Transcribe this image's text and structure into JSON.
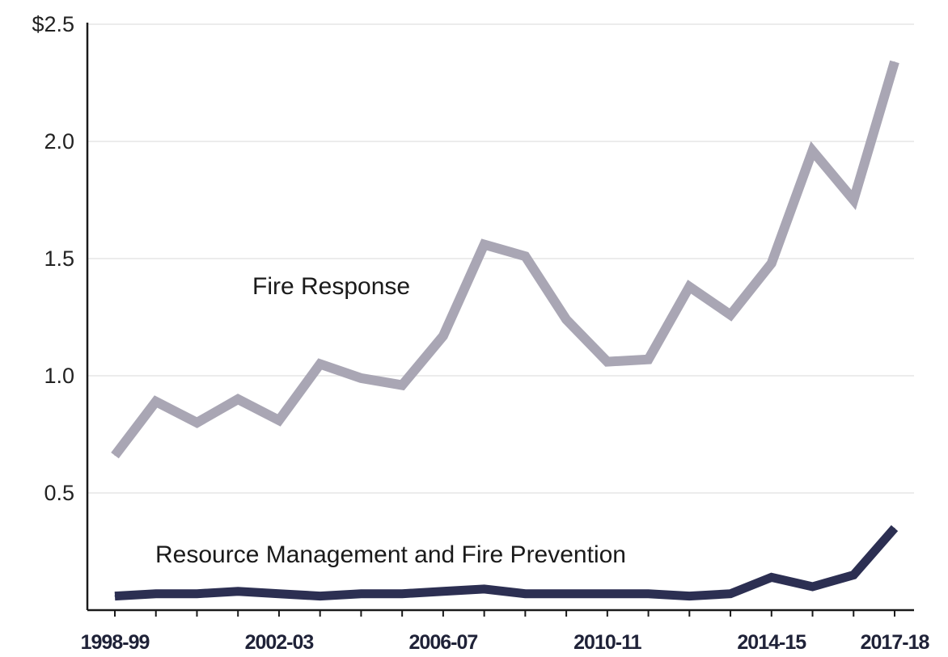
{
  "chart_data": {
    "type": "line",
    "title": "",
    "xlabel": "",
    "ylabel": "",
    "ylim": [
      0,
      2.5
    ],
    "yticks": [
      {
        "value": 0.5,
        "label": "0.5"
      },
      {
        "value": 1.0,
        "label": "1.0"
      },
      {
        "value": 1.5,
        "label": "1.5"
      },
      {
        "value": 2.0,
        "label": "2.0"
      },
      {
        "value": 2.5,
        "label": "$2.5"
      }
    ],
    "x": [
      "1998-99",
      "1999-00",
      "2000-01",
      "2001-02",
      "2002-03",
      "2003-04",
      "2004-05",
      "2005-06",
      "2006-07",
      "2007-08",
      "2008-09",
      "2009-10",
      "2010-11",
      "2011-12",
      "2012-13",
      "2013-14",
      "2014-15",
      "2015-16",
      "2016-17",
      "2017-18"
    ],
    "xticks": [
      "1998-99",
      "2002-03",
      "2006-07",
      "2010-11",
      "2014-15",
      "2017-18"
    ],
    "grid": true,
    "legend": "none",
    "series": [
      {
        "name": "Fire Response",
        "color": "#a9a6b4",
        "values": [
          0.66,
          0.89,
          0.8,
          0.9,
          0.81,
          1.05,
          0.99,
          0.96,
          1.17,
          1.56,
          1.51,
          1.24,
          1.06,
          1.07,
          1.38,
          1.26,
          1.48,
          1.96,
          1.75,
          2.34
        ]
      },
      {
        "name": "Resource Management and Fire Prevention",
        "color": "#2c2f52",
        "values": [
          0.06,
          0.07,
          0.07,
          0.08,
          0.07,
          0.06,
          0.07,
          0.07,
          0.08,
          0.09,
          0.07,
          0.07,
          0.07,
          0.07,
          0.06,
          0.07,
          0.14,
          0.1,
          0.15,
          0.35
        ]
      }
    ]
  }
}
